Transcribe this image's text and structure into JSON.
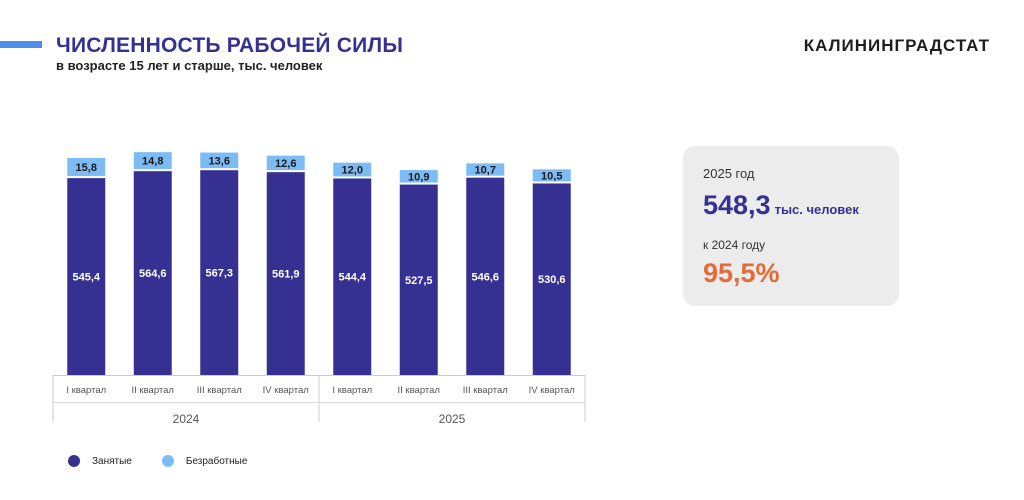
{
  "header": {
    "title": "ЧИСЛЕННОСТЬ РАБОЧЕЙ СИЛЫ",
    "subtitle": "в возрасте 15 лет и старше, тыс. человек",
    "brand": "КАЛИНИНГРАДСТАТ"
  },
  "summary_card": {
    "year_label": "2025 год",
    "value": "548,3",
    "unit": "тыс. человек",
    "compare_label": "к 2024 году",
    "percent": "95,5%"
  },
  "colors": {
    "employed": "#363092",
    "unemployed": "#7dbbf5",
    "title": "#363092",
    "percent": "#e56a3a",
    "accent": "#4d8fe8"
  },
  "chart_data": {
    "type": "bar",
    "stacked": true,
    "categories": [
      "I квартал",
      "II квартал",
      "III квартал",
      "IV квартал",
      "I квартал",
      "II квартал",
      "III квартал",
      "IV квартал"
    ],
    "groups": [
      {
        "label": "2024",
        "start": 0,
        "end": 3
      },
      {
        "label": "2025",
        "start": 4,
        "end": 7
      }
    ],
    "series": [
      {
        "name": "Занятые",
        "color": "#363092",
        "values": [
          545.4,
          564.6,
          567.3,
          561.9,
          544.4,
          527.5,
          546.6,
          530.6
        ],
        "labels": [
          "545,4",
          "564,6",
          "567,3",
          "561,9",
          "544,4",
          "527,5",
          "546,6",
          "530,6"
        ]
      },
      {
        "name": "Безработные",
        "color": "#7dbbf5",
        "values": [
          15.8,
          14.8,
          13.6,
          12.6,
          12.0,
          10.9,
          10.7,
          10.5
        ],
        "labels": [
          "15,8",
          "14,8",
          "13,6",
          "12,6",
          "12,0",
          "10,9",
          "10,7",
          "10,5"
        ]
      }
    ],
    "legend_position": "bottom-left",
    "grid": false
  },
  "legend": {
    "employed_label": "Занятые",
    "unemployed_label": "Безработные"
  }
}
